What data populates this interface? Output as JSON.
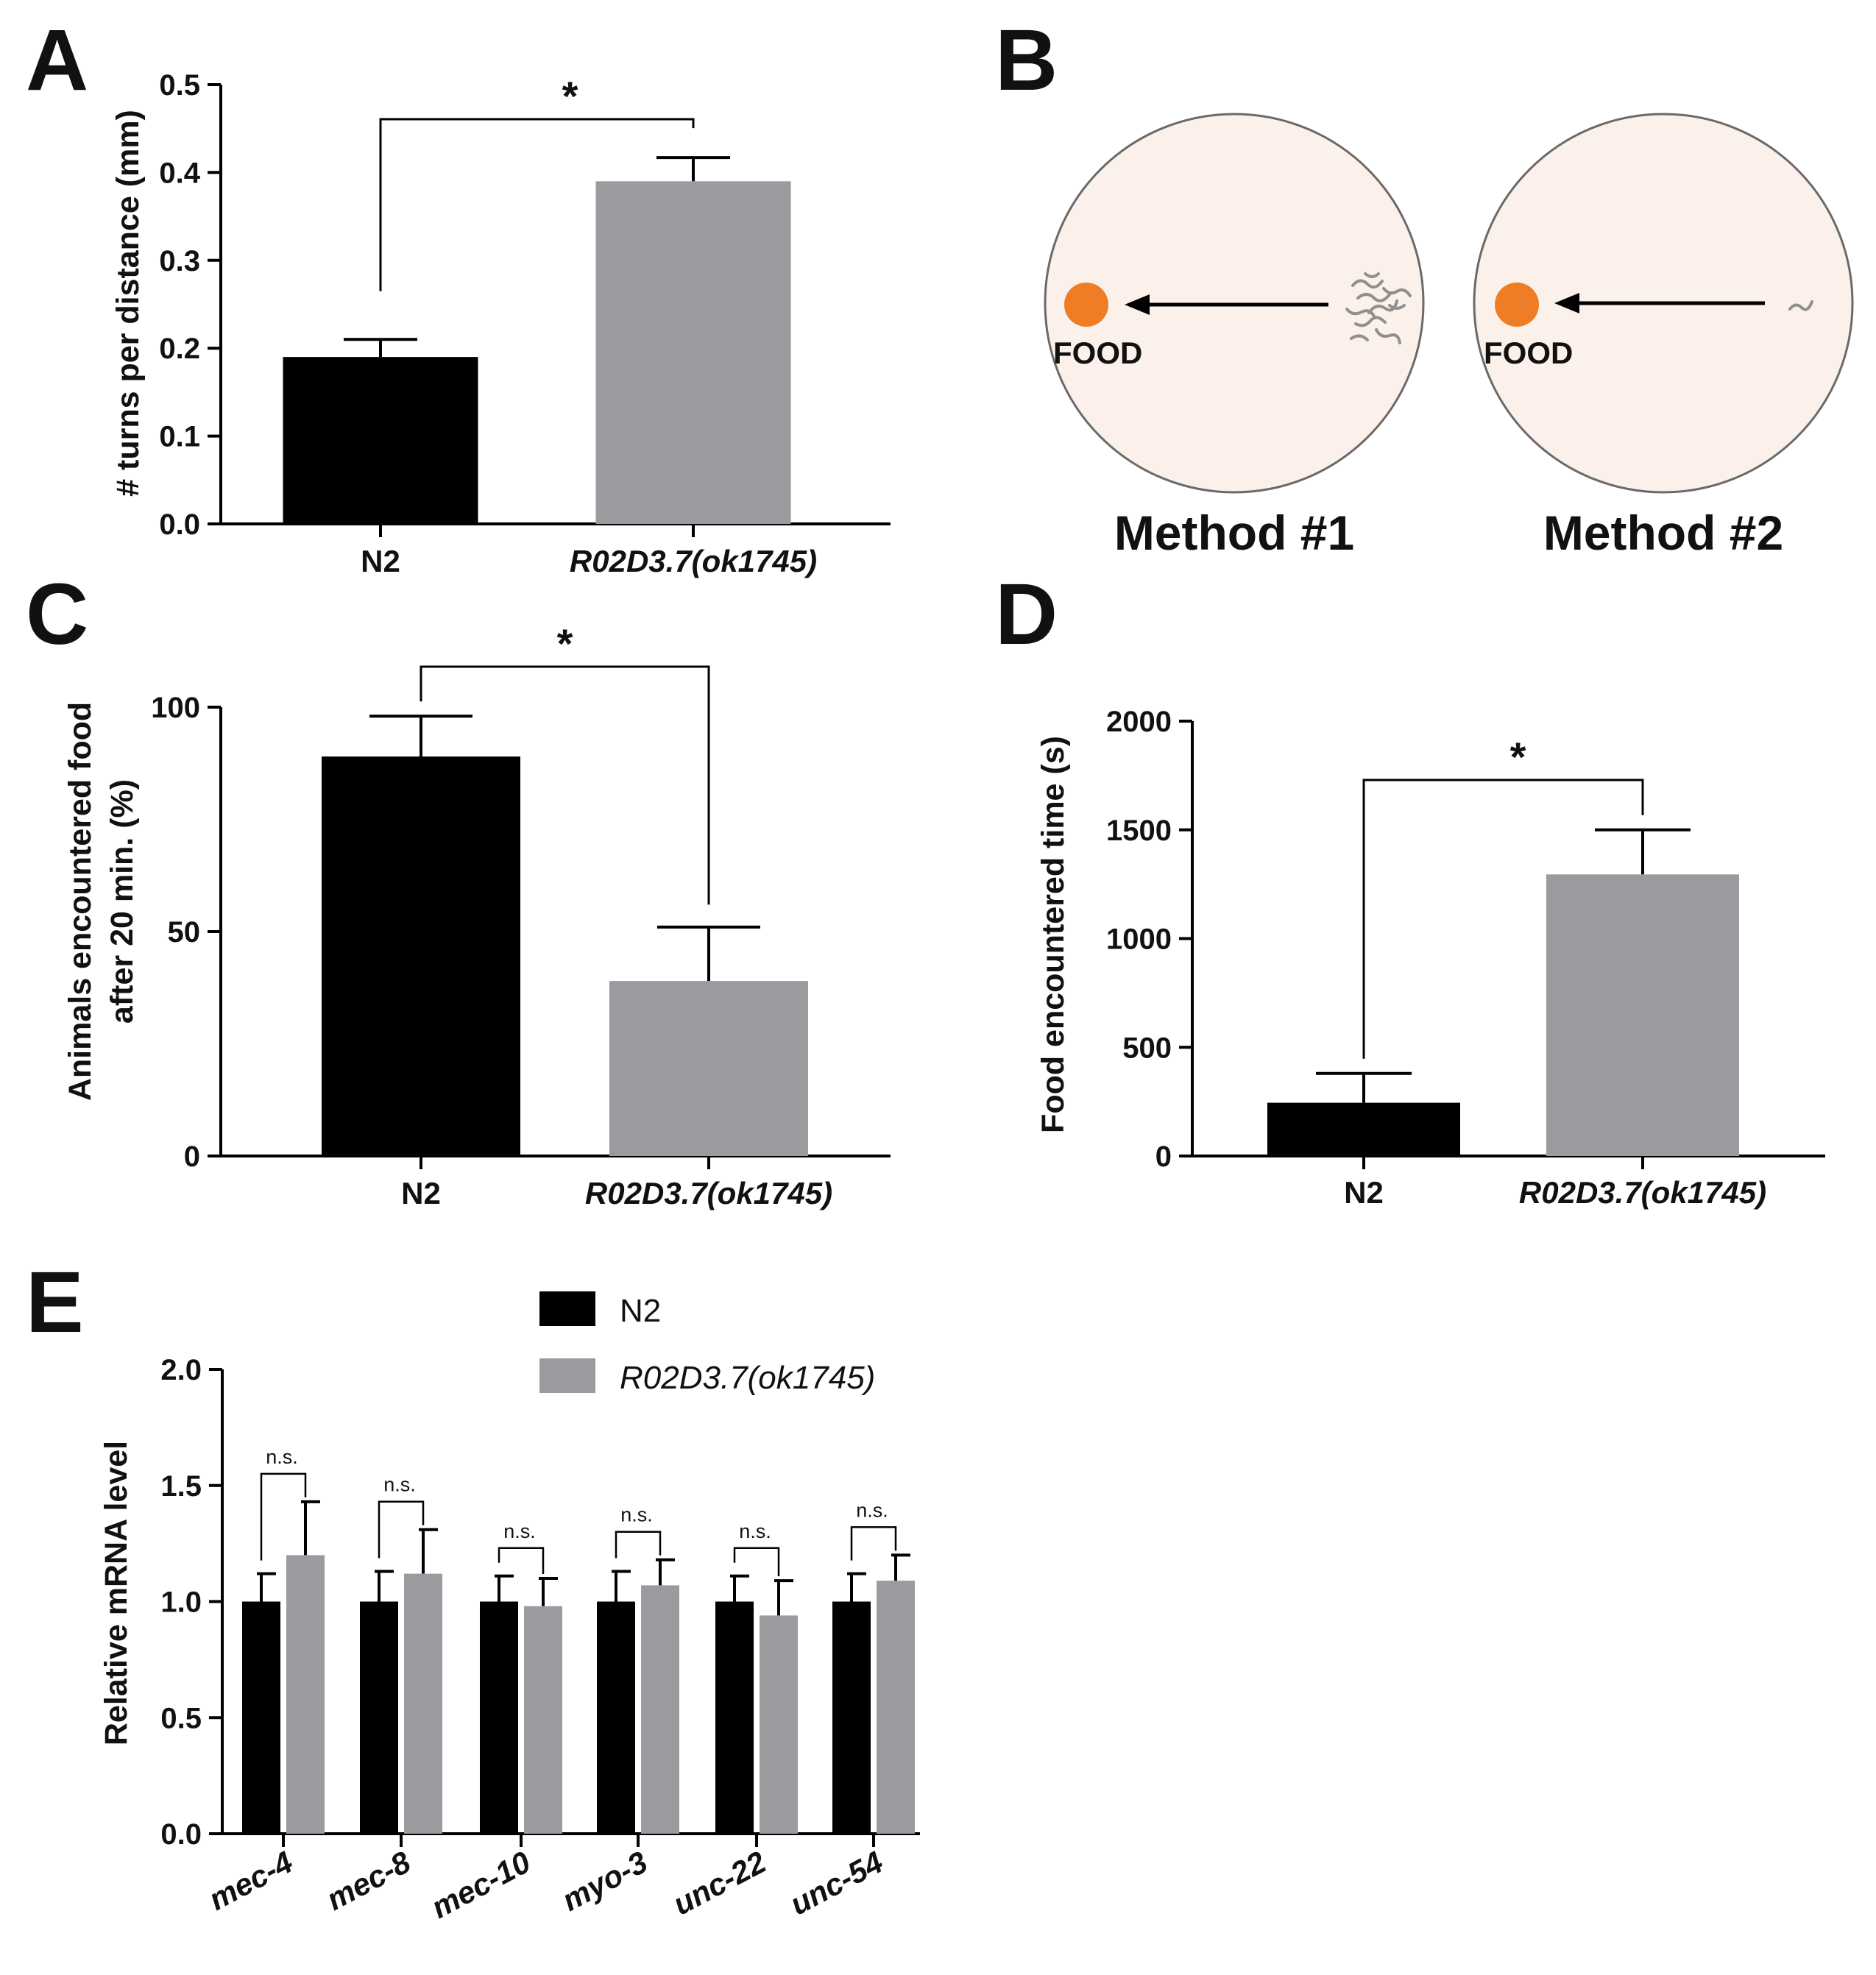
{
  "colors": {
    "n2": "#000000",
    "mutant": "#9b9b9f",
    "dish_fill": "#fbf1ea",
    "dish_stroke": "#6a6a6a",
    "food": "#ee7d25",
    "worm": "#8f8f8f"
  },
  "panel_b": {
    "label": "B",
    "dishes": [
      {
        "food_label": "FOOD",
        "method_label": "Method #1",
        "worms": "many"
      },
      {
        "food_label": "FOOD",
        "method_label": "Method #2",
        "worms": "one"
      }
    ]
  },
  "chart_data": [
    {
      "id": "A",
      "label": "A",
      "type": "bar",
      "categories": [
        "N2",
        "R02D3.7(ok1745)"
      ],
      "values": [
        0.19,
        0.39
      ],
      "errors": [
        0.02,
        0.027
      ],
      "ylabel": "# turns per distance (mm)",
      "ylim": [
        0,
        0.5
      ],
      "yticks": [
        "0.0",
        "0.1",
        "0.2",
        "0.3",
        "0.4",
        "0.5"
      ],
      "significance": "*",
      "italic_categories": [
        false,
        true
      ]
    },
    {
      "id": "C",
      "label": "C",
      "type": "bar",
      "categories": [
        "N2",
        "R02D3.7(ok1745)"
      ],
      "values": [
        89,
        39
      ],
      "errors": [
        9,
        12
      ],
      "ylabel_lines": [
        "Animals encountered food",
        "after 20 min. (%)"
      ],
      "ylim": [
        0,
        100
      ],
      "yticks": [
        "0",
        "50",
        "100"
      ],
      "significance": "*",
      "italic_categories": [
        false,
        true
      ]
    },
    {
      "id": "D",
      "label": "D",
      "type": "bar",
      "categories": [
        "N2",
        "R02D3.7(ok1745)"
      ],
      "values": [
        245,
        1295
      ],
      "errors": [
        135,
        205
      ],
      "ylabel": "Food encountered time (s)",
      "ylim": [
        0,
        2000
      ],
      "yticks": [
        "0",
        "500",
        "1000",
        "1500",
        "2000"
      ],
      "significance": "*",
      "italic_categories": [
        false,
        true
      ]
    },
    {
      "id": "E",
      "label": "E",
      "type": "bar",
      "categories": [
        "mec-4",
        "mec-8",
        "mec-10",
        "myo-3",
        "unc-22",
        "unc-54"
      ],
      "series": [
        {
          "name": "N2",
          "values": [
            1.0,
            1.0,
            1.0,
            1.0,
            1.0,
            1.0
          ],
          "errors": [
            0.12,
            0.13,
            0.11,
            0.13,
            0.11,
            0.12
          ]
        },
        {
          "name": "R02D3.7(ok1745)",
          "values": [
            1.2,
            1.12,
            0.98,
            1.07,
            0.94,
            1.09
          ],
          "errors": [
            0.23,
            0.19,
            0.12,
            0.11,
            0.15,
            0.11
          ]
        }
      ],
      "ylabel": "Relative mRNA level",
      "ylim": [
        0,
        2.0
      ],
      "yticks": [
        "0.0",
        "0.5",
        "1.0",
        "1.5",
        "2.0"
      ],
      "significance": [
        "n.s.",
        "n.s.",
        "n.s.",
        "n.s.",
        "n.s.",
        "n.s."
      ],
      "legend": "top-center"
    }
  ]
}
